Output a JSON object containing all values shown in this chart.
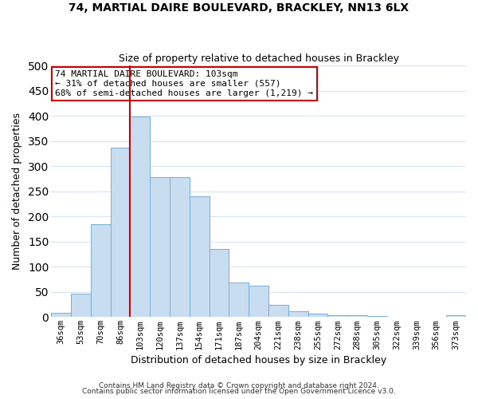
{
  "title": "74, MARTIAL DAIRE BOULEVARD, BRACKLEY, NN13 6LX",
  "subtitle": "Size of property relative to detached houses in Brackley",
  "xlabel": "Distribution of detached houses by size in Brackley",
  "ylabel": "Number of detached properties",
  "bar_labels": [
    "36sqm",
    "53sqm",
    "70sqm",
    "86sqm",
    "103sqm",
    "120sqm",
    "137sqm",
    "154sqm",
    "171sqm",
    "187sqm",
    "204sqm",
    "221sqm",
    "238sqm",
    "255sqm",
    "272sqm",
    "288sqm",
    "305sqm",
    "322sqm",
    "339sqm",
    "356sqm",
    "373sqm"
  ],
  "bar_values": [
    8,
    46,
    185,
    337,
    399,
    278,
    278,
    240,
    136,
    68,
    62,
    25,
    11,
    6,
    4,
    3,
    2,
    1,
    0,
    0,
    3
  ],
  "bar_color": "#c8ddf0",
  "bar_edge_color": "#7aadd4",
  "vline_index": 4,
  "vline_color": "#cc0000",
  "annotation_title": "74 MARTIAL DAIRE BOULEVARD: 103sqm",
  "annotation_line1": "← 31% of detached houses are smaller (557)",
  "annotation_line2": "68% of semi-detached houses are larger (1,219) →",
  "annotation_box_facecolor": "#ffffff",
  "annotation_box_edgecolor": "#cc0000",
  "ylim": [
    0,
    500
  ],
  "yticks": [
    0,
    50,
    100,
    150,
    200,
    250,
    300,
    350,
    400,
    450,
    500
  ],
  "footer1": "Contains HM Land Registry data © Crown copyright and database right 2024.",
  "footer2": "Contains public sector information licensed under the Open Government Licence v3.0.",
  "plot_bg_color": "#ffffff",
  "fig_bg_color": "#ffffff",
  "grid_color": "#d8e4f0"
}
